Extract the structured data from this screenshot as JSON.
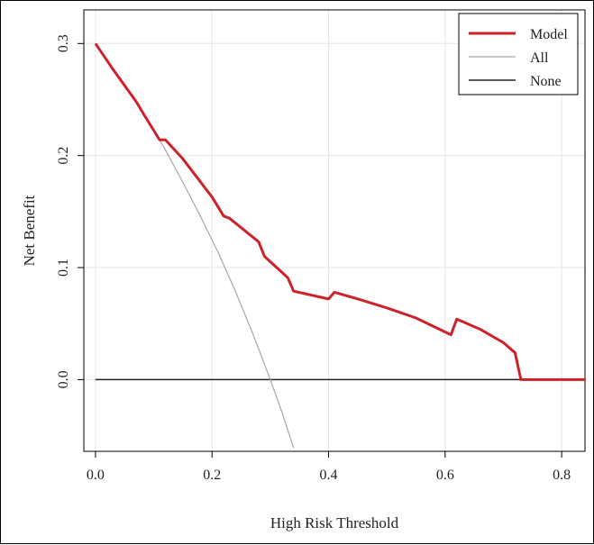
{
  "chart_data": {
    "type": "line",
    "title": "",
    "xlabel": "High Risk Threshold",
    "ylabel": "Net Benefit",
    "xlim": [
      -0.02,
      0.84
    ],
    "ylim": [
      -0.064,
      0.33
    ],
    "xticks": [
      0.0,
      0.2,
      0.4,
      0.6,
      0.8
    ],
    "xtick_labels": [
      "0.0",
      "0.2",
      "0.4",
      "0.6",
      "0.8"
    ],
    "yticks": [
      0.0,
      0.1,
      0.2,
      0.3
    ],
    "ytick_labels": [
      "0.0",
      "0.1",
      "0.2",
      "0.3"
    ],
    "grid": true,
    "legend_position": "top-right",
    "series": [
      {
        "name": "Model",
        "color": "#cc2229",
        "x": [
          0.0,
          0.03,
          0.07,
          0.085,
          0.11,
          0.12,
          0.15,
          0.2,
          0.22,
          0.23,
          0.28,
          0.29,
          0.33,
          0.34,
          0.4,
          0.41,
          0.45,
          0.5,
          0.55,
          0.61,
          0.62,
          0.66,
          0.7,
          0.72,
          0.73,
          0.84
        ],
        "y": [
          0.3,
          0.277,
          0.248,
          0.235,
          0.214,
          0.214,
          0.197,
          0.163,
          0.146,
          0.144,
          0.123,
          0.11,
          0.091,
          0.079,
          0.072,
          0.078,
          0.072,
          0.064,
          0.055,
          0.04,
          0.054,
          0.045,
          0.033,
          0.024,
          0.0,
          0.0
        ]
      },
      {
        "name": "All",
        "color": "#a8a8a8",
        "x": [
          0.0,
          0.03,
          0.06,
          0.09,
          0.12,
          0.15,
          0.18,
          0.21,
          0.24,
          0.27,
          0.3,
          0.32,
          0.34
        ],
        "y": [
          0.3,
          0.278,
          0.255,
          0.231,
          0.205,
          0.176,
          0.146,
          0.114,
          0.079,
          0.041,
          0.0,
          -0.029,
          -0.061
        ]
      },
      {
        "name": "None",
        "color": "#222222",
        "x": [
          0.0,
          0.84
        ],
        "y": [
          0.0,
          0.0
        ]
      }
    ]
  }
}
